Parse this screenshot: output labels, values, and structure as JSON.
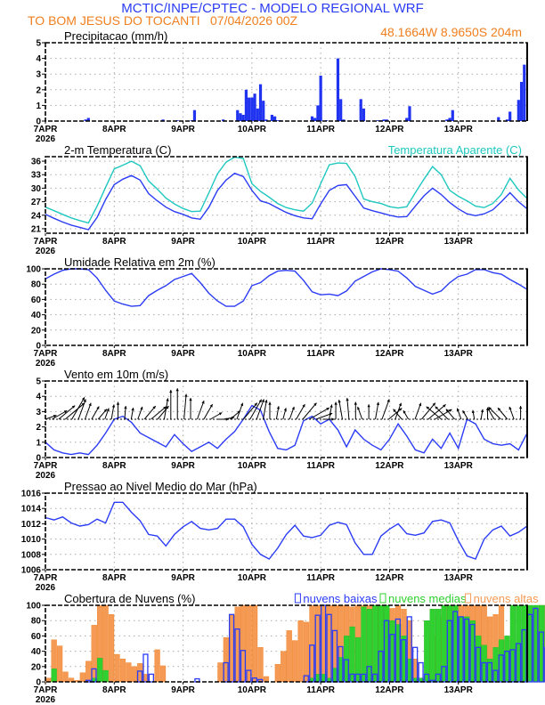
{
  "header": {
    "title": "MCTIC/INPE/CPTEC - MODELO REGIONAL WRF",
    "location": "TO BOM JESUS DO TOCANTI",
    "run": "07/04/2026 00Z",
    "coords": "48.1664W 8.9650S 204m"
  },
  "colors": {
    "title": "#2b3cf5",
    "location": "#f07f1e",
    "line": "#2b3cf5",
    "apparent": "#1ec8c0",
    "precip": "#2033f0",
    "low": "#2b3cf5",
    "mid": "#2fd02f",
    "high": "#f59a55",
    "arrow": "#000000"
  },
  "x_axis": {
    "day_labels": [
      "7APR",
      "8APR",
      "9APR",
      "10APR",
      "11APR",
      "12APR",
      "13APR"
    ],
    "year_label": "2026",
    "days": 7
  },
  "chart_data": [
    {
      "id": "precip",
      "type": "bar",
      "title": "Precipitacao (mm/h)",
      "ylim": [
        0,
        5
      ],
      "yticks": [
        "0",
        "1",
        "2",
        "3",
        "4",
        "5"
      ],
      "x_hours": [
        14,
        15,
        41,
        46,
        51,
        52,
        62,
        67,
        68,
        69,
        70,
        71,
        72,
        73,
        74,
        75,
        76,
        77,
        79,
        80,
        81,
        82,
        93,
        94,
        95,
        96,
        98,
        102,
        103,
        104,
        110,
        111,
        116,
        117,
        118,
        119,
        126,
        127,
        140,
        141,
        142,
        158,
        161,
        162,
        165,
        166,
        167
      ],
      "values": [
        0.1,
        0.2,
        0.1,
        0.05,
        0.05,
        0.7,
        0.1,
        0.7,
        0.5,
        0.4,
        2.0,
        1.5,
        1.5,
        1.75,
        0.8,
        2.35,
        1.3,
        0.1,
        0.4,
        0.3,
        0.05,
        0.05,
        0.3,
        0.2,
        1.0,
        2.9,
        0.05,
        4.0,
        1.4,
        0.1,
        1.4,
        0.8,
        0.05,
        0.05,
        0.1,
        0.1,
        0.2,
        0.95,
        0.1,
        0.2,
        0.7,
        0.25,
        0.1,
        0.6,
        1.35,
        2.5,
        3.6
      ]
    },
    {
      "id": "temp",
      "type": "line",
      "title": "2-m Temperatura (C)",
      "legend": "Temperatura Aparente (C)",
      "ylim": [
        20,
        37
      ],
      "yticks": [
        "21",
        "24",
        "27",
        "30",
        "33",
        "36"
      ],
      "x_step_hours": 3,
      "series": [
        {
          "name": "Temperatura 2m",
          "values": [
            24.2,
            23.3,
            22.5,
            21.8,
            21.3,
            20.8,
            23.5,
            27.5,
            30.8,
            32.0,
            32.8,
            31.8,
            28.8,
            27.2,
            25.8,
            24.8,
            24.2,
            23.4,
            23.1,
            25.8,
            29.5,
            31.8,
            33.3,
            32.6,
            29.5,
            27.2,
            26.6,
            25.6,
            24.6,
            23.9,
            23.4,
            23.2,
            26.5,
            29.5,
            30.6,
            30.8,
            28.2,
            25.6,
            25.0,
            24.5,
            24.0,
            23.6,
            23.7,
            26.0,
            28.3,
            30.0,
            28.6,
            26.8,
            25.4,
            24.3,
            23.9,
            24.3,
            25.2,
            27.0,
            29.0,
            27.0,
            25.4,
            24.8,
            24.0,
            22.6,
            26.6,
            28.4,
            29.4,
            28.4,
            25.6,
            24.8,
            24.6,
            23.8,
            23.2,
            25.6,
            27.2,
            27.6,
            25.0
          ]
        },
        {
          "name": "Temperatura Aparente",
          "values": [
            25.8,
            25.0,
            24.2,
            23.4,
            22.8,
            22.3,
            26.0,
            30.2,
            34.3,
            35.1,
            36.0,
            35.0,
            31.6,
            29.8,
            27.8,
            26.5,
            25.5,
            24.8,
            24.9,
            29.0,
            33.2,
            35.8,
            36.9,
            36.6,
            31.0,
            29.3,
            28.0,
            26.6,
            25.7,
            25.2,
            24.9,
            26.7,
            31.0,
            35.2,
            35.6,
            35.5,
            32.6,
            27.6,
            27.0,
            26.6,
            25.9,
            25.6,
            25.9,
            29.0,
            32.0,
            34.8,
            33.0,
            29.5,
            28.2,
            27.2,
            26.0,
            25.7,
            26.6,
            28.6,
            32.2,
            29.6,
            27.7,
            26.8,
            25.8,
            24.4,
            29.0,
            31.7,
            33.4,
            31.4,
            27.8,
            27.3,
            26.7,
            26.0,
            25.0,
            27.6,
            29.8,
            30.0,
            26.5
          ]
        }
      ]
    },
    {
      "id": "humidity",
      "type": "line",
      "title": "Umidade Relativa em 2m (%)",
      "ylim": [
        0,
        100
      ],
      "yticks": [
        "0",
        "20",
        "40",
        "60",
        "80",
        "100"
      ],
      "x_step_hours": 3,
      "series": [
        {
          "name": "Umidade",
          "values": [
            87,
            93,
            98,
            100,
            100,
            99,
            88,
            72,
            58,
            54,
            51,
            52,
            65,
            72,
            78,
            86,
            90,
            94,
            82,
            68,
            58,
            51,
            51,
            58,
            78,
            82,
            91,
            97,
            98,
            97,
            85,
            70,
            66,
            67,
            65,
            71,
            84,
            90,
            96,
            100,
            99,
            97,
            88,
            77,
            72,
            67,
            71,
            82,
            90,
            93,
            99,
            99,
            95,
            93,
            86,
            80,
            73,
            69,
            80,
            87,
            95,
            97,
            98,
            100,
            90,
            78,
            72,
            67,
            70,
            84,
            93,
            98,
            99,
            98,
            100,
            100,
            96,
            87,
            82,
            78,
            77,
            91
          ]
        }
      ]
    },
    {
      "id": "wind",
      "type": "line",
      "title": "Vento em 10m (m/s)",
      "ylim": [
        0,
        5
      ],
      "yticks": [
        "0",
        "1",
        "2",
        "3",
        "4",
        "5"
      ],
      "x_step_hours": 3,
      "series": [
        {
          "name": "Velocidade",
          "values": [
            1.0,
            0.5,
            0.3,
            0.2,
            0.3,
            0.2,
            0.8,
            1.6,
            2.5,
            2.7,
            2.3,
            1.6,
            1.3,
            1.0,
            0.7,
            1.5,
            0.9,
            0.4,
            0.7,
            1.0,
            0.6,
            1.2,
            1.7,
            2.5,
            3.4,
            3.1,
            1.7,
            0.6,
            0.5,
            0.8,
            2.4,
            2.7,
            2.2,
            2.5,
            1.8,
            0.7,
            1.8,
            1.2,
            0.8,
            0.5,
            1.2,
            2.2,
            1.4,
            0.5,
            0.3,
            1.2,
            0.6,
            1.6,
            0.6,
            2.5,
            2.2,
            1.2,
            0.9,
            0.8,
            0.9,
            0.5,
            1.6,
            2.2,
            1.7,
            2.5,
            2.4,
            2.6,
            1.8,
            1.0,
            0.7,
            1.0,
            0.5,
            0.3,
            0.5,
            0.9,
            2.0,
            2.1,
            2.4
          ]
        }
      ],
      "arrows_dir_deg": [
        250,
        240,
        230,
        230,
        210,
        200,
        200,
        210,
        220,
        200,
        190,
        180,
        185,
        190,
        200,
        220,
        230,
        220,
        190,
        180,
        180,
        185,
        180,
        200,
        210,
        240,
        270,
        260,
        230,
        200,
        220,
        210,
        200,
        190,
        180,
        190,
        195,
        200,
        210,
        220,
        240,
        250,
        270,
        190,
        180,
        170,
        175,
        180,
        160,
        180,
        190,
        200,
        230,
        200,
        140,
        150,
        200,
        220,
        230,
        240,
        130,
        135,
        140,
        160,
        150,
        170,
        190,
        180,
        150,
        135,
        140,
        160,
        180
      ],
      "arrows_speed": [
        0.8,
        1.5,
        2.0,
        2.5,
        2.5,
        2.0,
        1.5,
        1.2,
        1.0,
        0.8,
        1.2,
        1.5,
        1.0,
        0.8,
        1.0,
        1.5,
        1.8,
        1.5,
        2.0,
        3.0,
        3.2,
        2.5,
        2.0,
        1.8,
        1.5,
        1.0,
        0.8,
        0.7,
        1.0,
        1.5,
        2.0,
        2.2,
        2.0,
        1.8,
        1.5,
        1.0,
        0.8,
        1.0,
        1.5,
        2.0,
        2.2,
        1.5,
        0.8,
        1.2,
        1.5,
        1.8,
        2.0,
        1.5,
        1.0,
        1.2,
        1.5,
        2.0,
        1.5,
        1.5,
        1.0,
        0.6,
        1.5,
        2.0,
        2.2,
        1.8,
        1.8,
        1.6,
        1.0,
        0.8,
        0.6,
        0.5,
        0.6,
        0.8,
        1.0,
        1.5,
        1.2,
        1.0,
        1.0
      ]
    },
    {
      "id": "pressure",
      "type": "line",
      "title": "Pressao ao Nivel Medio do Mar (hPa)",
      "ylim": [
        1006,
        1016
      ],
      "yticks": [
        "1006",
        "1008",
        "1010",
        "1012",
        "1014",
        "1016"
      ],
      "x_step_hours": 3,
      "series": [
        {
          "name": "Pressao",
          "values": [
            1012.8,
            1012.5,
            1012.9,
            1012.1,
            1011.7,
            1011.9,
            1012.6,
            1012.1,
            1014.8,
            1014.8,
            1013.5,
            1012.4,
            1010.6,
            1010.4,
            1009.1,
            1010.6,
            1011.6,
            1012.3,
            1011.4,
            1011.2,
            1011.4,
            1012.6,
            1012.6,
            1011.6,
            1009.3,
            1008.0,
            1007.4,
            1008.8,
            1010.6,
            1011.8,
            1010.4,
            1010.2,
            1010.5,
            1011.8,
            1012.2,
            1011.9,
            1009.5,
            1008.0,
            1008.0,
            1010.4,
            1011.3,
            1012.0,
            1010.7,
            1010.5,
            1010.8,
            1012.3,
            1012.5,
            1012.1,
            1009.8,
            1007.8,
            1007.4,
            1010.0,
            1011.2,
            1011.7,
            1010.4,
            1010.9,
            1011.7,
            1013.0,
            1013.6,
            1013.6,
            1010.8,
            1009.2,
            1008.6,
            1011.0,
            1012.0,
            1012.8,
            1011.5,
            1011.3,
            1011.1,
            1012.5,
            1013.3,
            1012.8,
            1010.0,
            1008.8,
            1009.2,
            1011.8,
            1011.9,
            1012.1,
            1010.6,
            1010.3,
            1010.7,
            1012.0,
            1012.6,
            1012.3,
            1009.4,
            1008.1,
            1008.6,
            1010.5
          ]
        }
      ]
    },
    {
      "id": "clouds",
      "type": "bar",
      "title": "Cobertura de Nuvens (%)",
      "ylim": [
        0,
        100
      ],
      "yticks": [
        "0",
        "20",
        "40",
        "60",
        "80",
        "100"
      ],
      "legend": [
        "nuvens baixas",
        "nuvens medias",
        "nuvens altas"
      ],
      "x_step_hours": 2,
      "series": [
        {
          "name": "nuvens altas",
          "values": [
            5,
            55,
            47,
            13,
            5,
            2,
            12,
            27,
            74,
            100,
            100,
            88,
            36,
            30,
            25,
            20,
            24,
            10,
            0,
            42,
            21,
            0,
            0,
            0,
            0,
            0,
            0,
            0,
            0,
            0,
            25,
            58,
            87,
            98,
            100,
            100,
            100,
            45,
            7,
            0,
            23,
            40,
            67,
            54,
            80,
            78,
            100,
            100,
            100,
            100,
            100,
            100,
            100,
            98,
            100,
            100,
            100,
            100,
            100,
            90,
            96,
            100,
            95,
            80,
            30,
            5,
            5,
            60,
            85,
            100,
            100,
            100,
            100,
            100,
            100,
            100,
            100,
            85,
            88,
            100,
            55,
            45,
            40,
            60,
            65,
            95,
            100,
            100,
            100,
            92,
            100,
            100,
            100,
            100,
            100,
            100
          ]
        },
        {
          "name": "nuvens medias",
          "values": [
            0,
            17,
            0,
            0,
            0,
            0,
            0,
            0,
            5,
            31,
            15,
            0,
            0,
            0,
            0,
            0,
            0,
            0,
            0,
            0,
            0,
            0,
            0,
            0,
            0,
            0,
            0,
            0,
            0,
            0,
            0,
            0,
            0,
            0,
            0,
            0,
            0,
            0,
            0,
            0,
            0,
            0,
            0,
            0,
            0,
            0,
            5,
            10,
            10,
            5,
            18,
            32,
            60,
            72,
            58,
            98,
            95,
            100,
            100,
            100,
            80,
            75,
            60,
            30,
            5,
            5,
            80,
            95,
            95,
            100,
            100,
            100,
            85,
            85,
            80,
            60,
            48,
            30,
            45,
            55,
            60,
            100,
            100,
            100,
            100,
            100,
            100,
            100,
            100,
            100,
            100,
            100,
            100,
            100,
            100,
            100
          ]
        },
        {
          "name": "nuvens baixas",
          "values": [
            0,
            0,
            0,
            0,
            0,
            0,
            0,
            2,
            17,
            0,
            0,
            0,
            0,
            0,
            0,
            0,
            14,
            36,
            10,
            0,
            0,
            0,
            0,
            0,
            0,
            0,
            4,
            0,
            0,
            0,
            0,
            25,
            88,
            69,
            41,
            15,
            5,
            3,
            0,
            0,
            0,
            0,
            0,
            0,
            0,
            8,
            48,
            87,
            100,
            88,
            67,
            46,
            29,
            10,
            10,
            10,
            20,
            10,
            40,
            80,
            62,
            82,
            55,
            85,
            45,
            25,
            10,
            2,
            10,
            20,
            80,
            92,
            85,
            82,
            75,
            45,
            25,
            25,
            15,
            35,
            40,
            42,
            50,
            68,
            88,
            96,
            65,
            45,
            30,
            10,
            35,
            55,
            60,
            30,
            38,
            25
          ]
        }
      ]
    }
  ]
}
